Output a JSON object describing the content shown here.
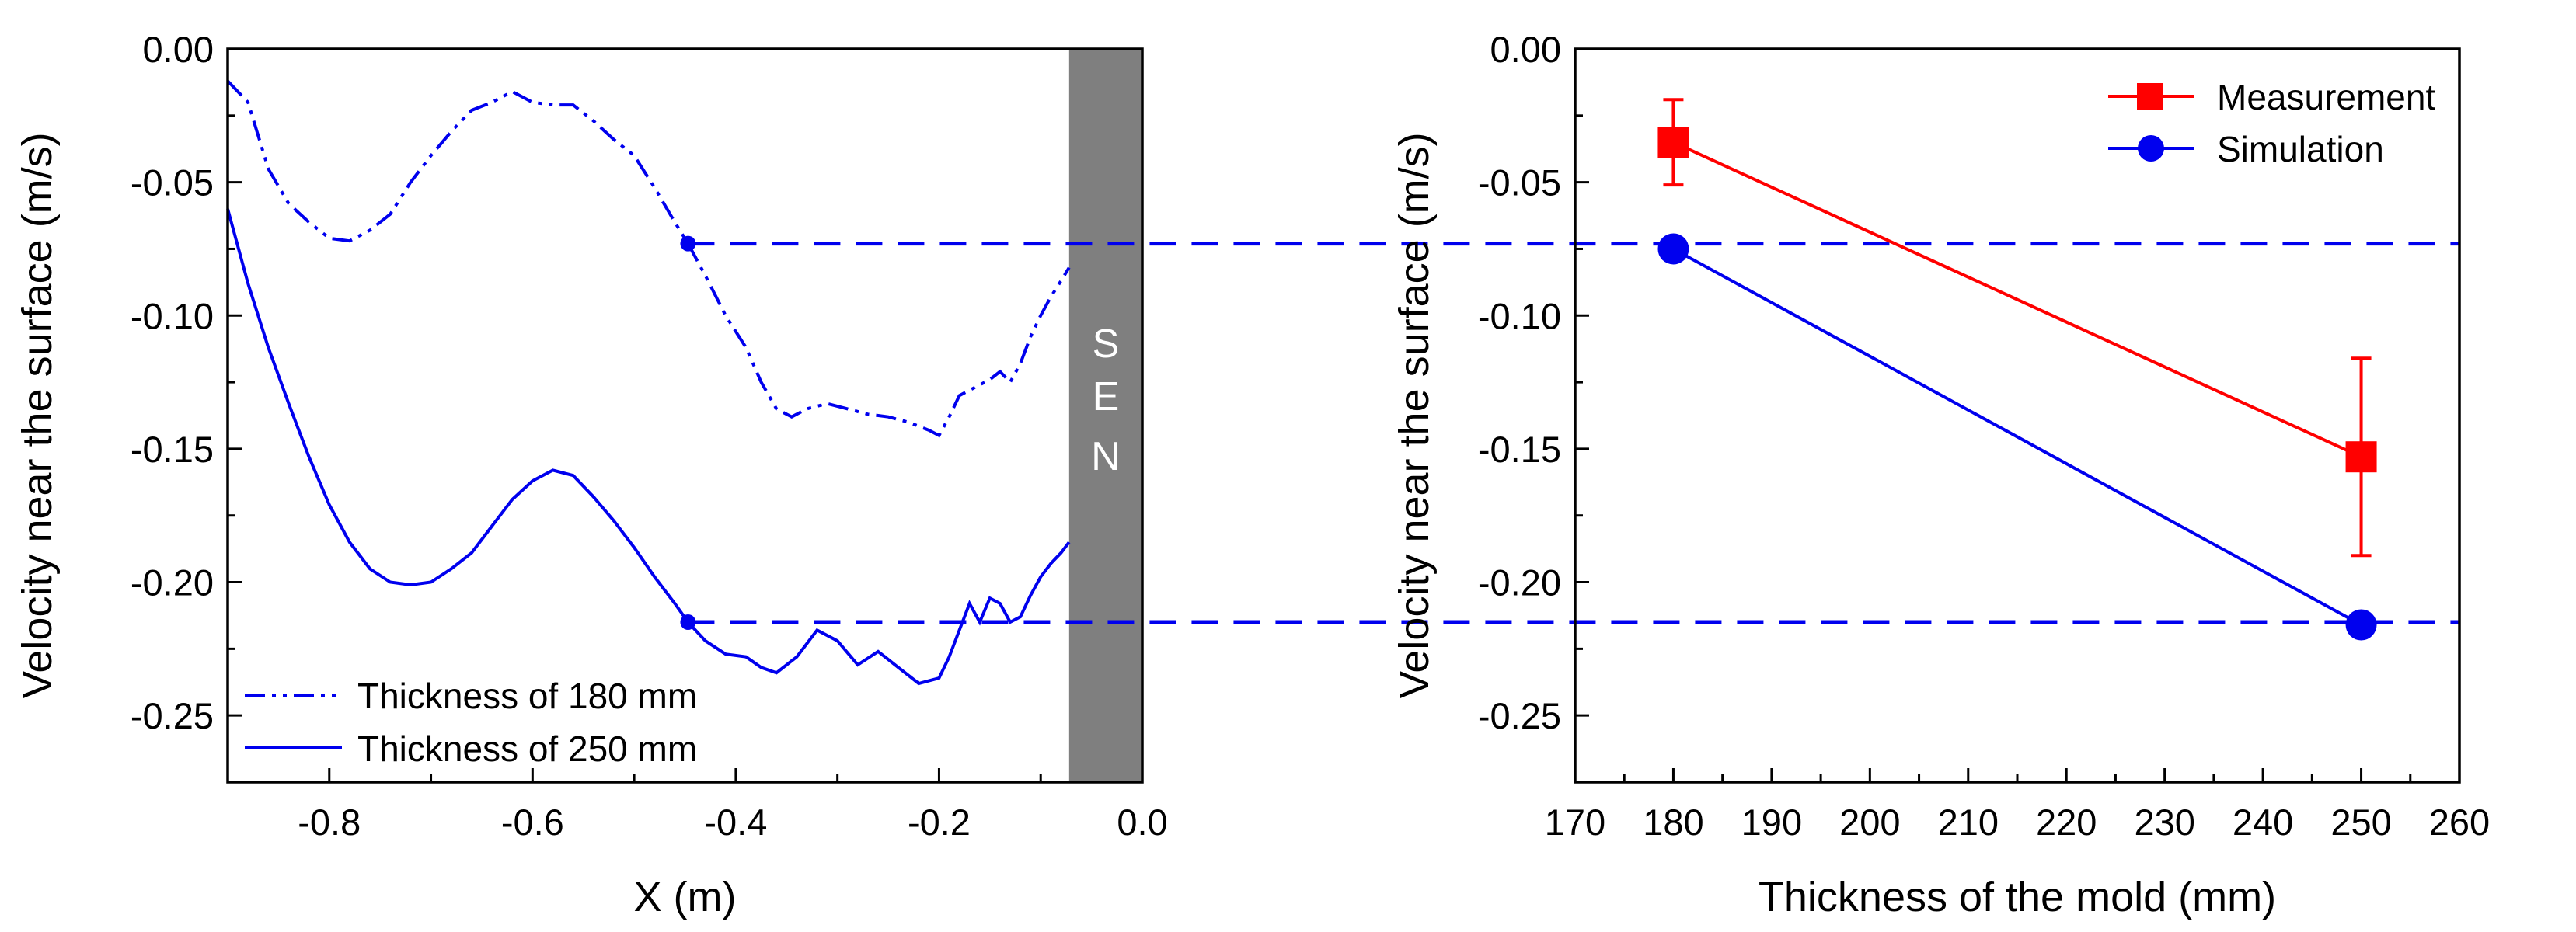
{
  "colors": {
    "blue": "#0000ee",
    "red": "#ff0000",
    "sen_fill": "#7f7f7f"
  },
  "chart_data": [
    {
      "type": "line",
      "xlabel": "X (m)",
      "ylabel": "Velocity near the surface (m/s)",
      "xlim": [
        -0.9,
        0.0
      ],
      "ylim": [
        -0.275,
        0.0
      ],
      "x_ticks": [
        -0.8,
        -0.6,
        -0.4,
        -0.2,
        0.0
      ],
      "x_tick_labels": [
        "-0.8",
        "-0.6",
        "-0.4",
        "-0.2",
        "0.0"
      ],
      "y_ticks": [
        0.0,
        -0.05,
        -0.1,
        -0.15,
        -0.2,
        -0.25
      ],
      "y_tick_labels": [
        "0.00",
        "-0.05",
        "-0.10",
        "-0.15",
        "-0.20",
        "-0.25"
      ],
      "annotation": {
        "text": [
          "S",
          "E",
          "N"
        ],
        "region_x": [
          -0.072,
          0.0
        ]
      },
      "series": [
        {
          "name": "Thickness of 180 mm",
          "style": "dash-dot-dot",
          "marker_point": [
            -0.447,
            -0.073
          ],
          "points": [
            [
              -0.9,
              -0.012
            ],
            [
              -0.88,
              -0.02
            ],
            [
              -0.86,
              -0.045
            ],
            [
              -0.84,
              -0.058
            ],
            [
              -0.82,
              -0.065
            ],
            [
              -0.8,
              -0.071
            ],
            [
              -0.78,
              -0.072
            ],
            [
              -0.76,
              -0.068
            ],
            [
              -0.74,
              -0.062
            ],
            [
              -0.72,
              -0.05
            ],
            [
              -0.7,
              -0.04
            ],
            [
              -0.68,
              -0.031
            ],
            [
              -0.66,
              -0.023
            ],
            [
              -0.64,
              -0.02
            ],
            [
              -0.62,
              -0.016
            ],
            [
              -0.6,
              -0.02
            ],
            [
              -0.58,
              -0.021
            ],
            [
              -0.56,
              -0.021
            ],
            [
              -0.54,
              -0.027
            ],
            [
              -0.52,
              -0.034
            ],
            [
              -0.5,
              -0.04
            ],
            [
              -0.48,
              -0.052
            ],
            [
              -0.46,
              -0.065
            ],
            [
              -0.447,
              -0.073
            ],
            [
              -0.43,
              -0.085
            ],
            [
              -0.41,
              -0.1
            ],
            [
              -0.39,
              -0.112
            ],
            [
              -0.375,
              -0.125
            ],
            [
              -0.36,
              -0.135
            ],
            [
              -0.345,
              -0.138
            ],
            [
              -0.33,
              -0.135
            ],
            [
              -0.31,
              -0.133
            ],
            [
              -0.29,
              -0.135
            ],
            [
              -0.27,
              -0.137
            ],
            [
              -0.25,
              -0.138
            ],
            [
              -0.23,
              -0.14
            ],
            [
              -0.21,
              -0.143
            ],
            [
              -0.2,
              -0.145
            ],
            [
              -0.19,
              -0.138
            ],
            [
              -0.18,
              -0.13
            ],
            [
              -0.165,
              -0.127
            ],
            [
              -0.15,
              -0.124
            ],
            [
              -0.14,
              -0.121
            ],
            [
              -0.13,
              -0.125
            ],
            [
              -0.12,
              -0.118
            ],
            [
              -0.11,
              -0.108
            ],
            [
              -0.1,
              -0.1
            ],
            [
              -0.09,
              -0.093
            ],
            [
              -0.08,
              -0.087
            ],
            [
              -0.072,
              -0.082
            ]
          ]
        },
        {
          "name": "Thickness of 250 mm",
          "style": "solid",
          "marker_point": [
            -0.447,
            -0.215
          ],
          "points": [
            [
              -0.9,
              -0.06
            ],
            [
              -0.88,
              -0.088
            ],
            [
              -0.86,
              -0.112
            ],
            [
              -0.84,
              -0.133
            ],
            [
              -0.82,
              -0.153
            ],
            [
              -0.8,
              -0.171
            ],
            [
              -0.78,
              -0.185
            ],
            [
              -0.76,
              -0.195
            ],
            [
              -0.74,
              -0.2
            ],
            [
              -0.72,
              -0.201
            ],
            [
              -0.7,
              -0.2
            ],
            [
              -0.68,
              -0.195
            ],
            [
              -0.66,
              -0.189
            ],
            [
              -0.64,
              -0.179
            ],
            [
              -0.62,
              -0.169
            ],
            [
              -0.6,
              -0.162
            ],
            [
              -0.58,
              -0.158
            ],
            [
              -0.56,
              -0.16
            ],
            [
              -0.54,
              -0.168
            ],
            [
              -0.52,
              -0.177
            ],
            [
              -0.5,
              -0.187
            ],
            [
              -0.48,
              -0.198
            ],
            [
              -0.46,
              -0.208
            ],
            [
              -0.447,
              -0.215
            ],
            [
              -0.43,
              -0.222
            ],
            [
              -0.41,
              -0.227
            ],
            [
              -0.39,
              -0.228
            ],
            [
              -0.375,
              -0.232
            ],
            [
              -0.36,
              -0.234
            ],
            [
              -0.34,
              -0.228
            ],
            [
              -0.32,
              -0.218
            ],
            [
              -0.3,
              -0.222
            ],
            [
              -0.28,
              -0.231
            ],
            [
              -0.26,
              -0.226
            ],
            [
              -0.24,
              -0.232
            ],
            [
              -0.22,
              -0.238
            ],
            [
              -0.2,
              -0.236
            ],
            [
              -0.19,
              -0.228
            ],
            [
              -0.18,
              -0.218
            ],
            [
              -0.17,
              -0.208
            ],
            [
              -0.16,
              -0.215
            ],
            [
              -0.15,
              -0.206
            ],
            [
              -0.14,
              -0.208
            ],
            [
              -0.13,
              -0.215
            ],
            [
              -0.12,
              -0.213
            ],
            [
              -0.11,
              -0.205
            ],
            [
              -0.1,
              -0.198
            ],
            [
              -0.09,
              -0.193
            ],
            [
              -0.08,
              -0.189
            ],
            [
              -0.072,
              -0.185
            ]
          ]
        }
      ],
      "legend": {
        "location": "lower-left"
      }
    },
    {
      "type": "line",
      "xlabel": "Thickness of the mold (mm)",
      "ylabel": "Velocity near the surface (m/s)",
      "xlim": [
        170,
        260
      ],
      "ylim": [
        -0.275,
        0.0
      ],
      "x_ticks": [
        170,
        180,
        190,
        200,
        210,
        220,
        230,
        240,
        250,
        260
      ],
      "x_tick_labels": [
        "170",
        "180",
        "190",
        "200",
        "210",
        "220",
        "230",
        "240",
        "250",
        "260"
      ],
      "y_ticks": [
        0.0,
        -0.05,
        -0.1,
        -0.15,
        -0.2,
        -0.25
      ],
      "y_tick_labels": [
        "0.00",
        "-0.05",
        "-0.10",
        "-0.15",
        "-0.20",
        "-0.25"
      ],
      "series": [
        {
          "name": "Measurement",
          "marker": "square",
          "x": [
            180,
            250
          ],
          "y": [
            -0.035,
            -0.153
          ],
          "error": [
            0.016,
            0.037
          ]
        },
        {
          "name": "Simulation",
          "marker": "circle",
          "x": [
            180,
            250
          ],
          "y": [
            -0.075,
            -0.216
          ]
        }
      ],
      "legend": {
        "location": "top-right"
      }
    }
  ],
  "reference_lines": [
    {
      "from_series": "Thickness of 180 mm",
      "value": -0.073
    },
    {
      "from_series": "Thickness of 250 mm",
      "value": -0.215
    }
  ]
}
